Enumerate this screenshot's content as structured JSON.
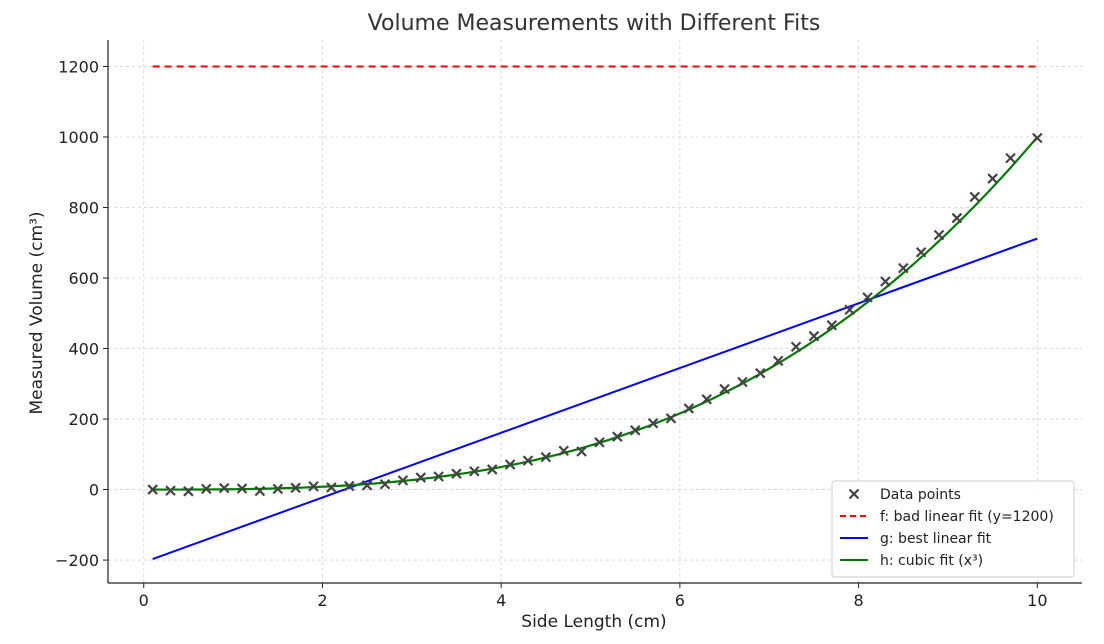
{
  "chart_data": {
    "type": "line",
    "title": "Volume Measurements with Different Fits",
    "xlabel": "Side Length (cm)",
    "ylabel": "Measured Volume (cm³)",
    "xlim": [
      -0.4,
      10.5
    ],
    "ylim": [
      -265,
      1275
    ],
    "xticks": [
      0,
      2,
      4,
      6,
      8,
      10
    ],
    "xtick_labels": [
      "0",
      "2",
      "4",
      "6",
      "8",
      "10"
    ],
    "yticks": [
      -200,
      0,
      200,
      400,
      600,
      800,
      1000,
      1200
    ],
    "ytick_labels": [
      "−200",
      "0",
      "200",
      "400",
      "600",
      "800",
      "1000",
      "1200"
    ],
    "grid": true,
    "legend_position": "lower-right",
    "series": [
      {
        "name": "Data points",
        "kind": "scatter",
        "marker": "x",
        "color": "#444444",
        "x": [
          0.1,
          0.3,
          0.5,
          0.7,
          0.9,
          1.1,
          1.3,
          1.5,
          1.7,
          1.9,
          2.1,
          2.3,
          2.5,
          2.7,
          2.9,
          3.1,
          3.3,
          3.5,
          3.7,
          3.9,
          4.1,
          4.3,
          4.5,
          4.7,
          4.9,
          5.1,
          5.3,
          5.5,
          5.7,
          5.9,
          6.1,
          6.3,
          6.5,
          6.7,
          6.9,
          7.1,
          7.3,
          7.5,
          7.7,
          7.9,
          8.1,
          8.3,
          8.5,
          8.7,
          8.9,
          9.1,
          9.3,
          9.5,
          9.7,
          10.0
        ],
        "y": [
          0,
          -3,
          -5,
          2,
          4,
          3,
          -4,
          2,
          5,
          9,
          6,
          10,
          12,
          15,
          26,
          34,
          37,
          45,
          52,
          57,
          71,
          82,
          92,
          110,
          108,
          134,
          150,
          168,
          188,
          202,
          230,
          256,
          285,
          305,
          330,
          365,
          405,
          435,
          466,
          510,
          545,
          590,
          628,
          673,
          722,
          770,
          830,
          882,
          940,
          997
        ]
      },
      {
        "name": "f: bad linear fit (y=1200)",
        "kind": "line",
        "color": "#ff0000",
        "dash": true,
        "x": [
          0.1,
          10.0
        ],
        "y": [
          1200,
          1200
        ]
      },
      {
        "name": "g: best linear fit",
        "kind": "line",
        "color": "#0000ff",
        "x": [
          0.1,
          10.0
        ],
        "y": [
          -197,
          712
        ]
      },
      {
        "name": "h: cubic fit (x³)",
        "kind": "cubic",
        "color": "#007a00",
        "x_range": [
          0.1,
          10.0
        ],
        "coefficient": 1
      }
    ]
  }
}
